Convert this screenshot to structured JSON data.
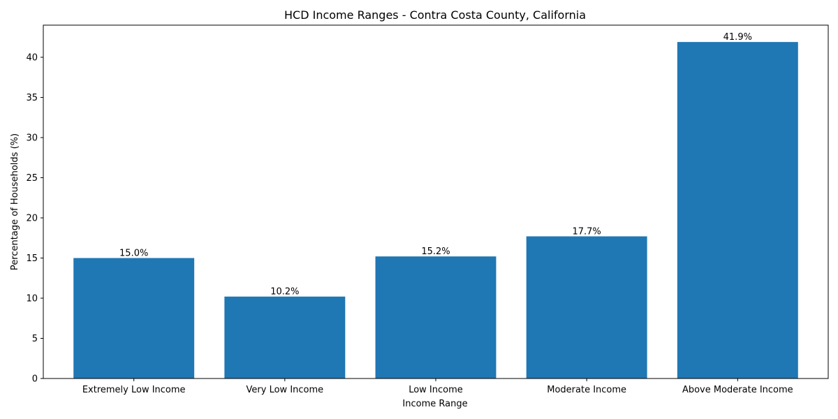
{
  "chart_data": {
    "type": "bar",
    "title": "HCD Income Ranges - Contra Costa County, California",
    "xlabel": "Income Range",
    "ylabel": "Percentage of Households (%)",
    "categories": [
      "Extremely Low Income",
      "Very Low Income",
      "Low Income",
      "Moderate Income",
      "Above Moderate Income"
    ],
    "values": [
      15.0,
      10.2,
      15.2,
      17.7,
      41.9
    ],
    "data_labels": [
      "15.0%",
      "10.2%",
      "15.2%",
      "17.7%",
      "41.9%"
    ],
    "ylim": [
      0,
      44
    ],
    "yticks": [
      0,
      5,
      10,
      15,
      20,
      25,
      30,
      35,
      40
    ],
    "grid": false,
    "bar_color": "#1f77b4"
  }
}
